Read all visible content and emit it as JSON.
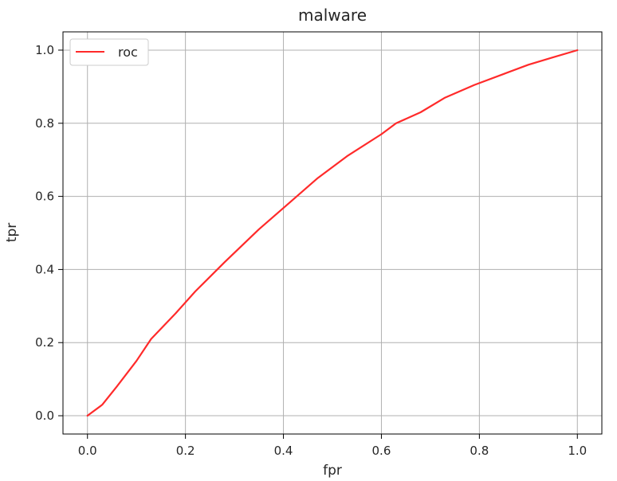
{
  "chart_data": {
    "type": "line",
    "title": "malware",
    "xlabel": "fpr",
    "ylabel": "tpr",
    "xlim": [
      -0.05,
      1.05
    ],
    "ylim": [
      -0.05,
      1.05
    ],
    "xticks": [
      "0.0",
      "0.2",
      "0.4",
      "0.6",
      "0.8",
      "1.0"
    ],
    "yticks": [
      "0.0",
      "0.2",
      "0.4",
      "0.6",
      "0.8",
      "1.0"
    ],
    "grid": true,
    "legend": {
      "position": "top-left"
    },
    "colors": {
      "series": "#ff2a2a",
      "grid": "#b0b0b0",
      "axes": "#000000"
    },
    "series": [
      {
        "name": "roc",
        "x": [
          0.0,
          0.03,
          0.06,
          0.1,
          0.13,
          0.18,
          0.22,
          0.28,
          0.35,
          0.41,
          0.47,
          0.53,
          0.6,
          0.63,
          0.68,
          0.73,
          0.79,
          0.85,
          0.9,
          0.95,
          1.0
        ],
        "y": [
          0.0,
          0.03,
          0.08,
          0.15,
          0.21,
          0.28,
          0.34,
          0.42,
          0.51,
          0.58,
          0.65,
          0.71,
          0.77,
          0.8,
          0.83,
          0.87,
          0.905,
          0.935,
          0.96,
          0.98,
          1.0
        ]
      }
    ]
  }
}
